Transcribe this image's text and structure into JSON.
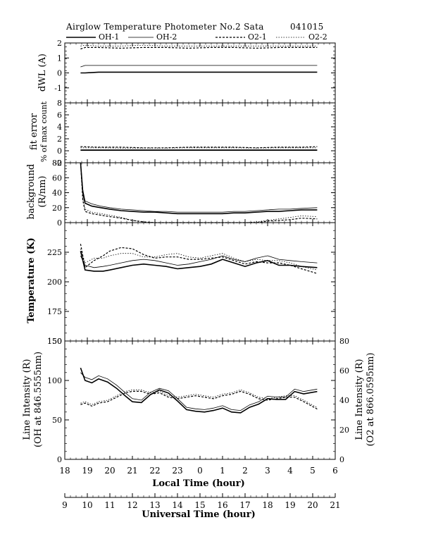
{
  "header": {
    "title": "Airglow Temperature Photometer No.2  Sata",
    "date": "041015"
  },
  "legend": [
    {
      "name": "OH-1",
      "style": "solid-thick"
    },
    {
      "name": "OH-2",
      "style": "solid-thin"
    },
    {
      "name": "O2-1",
      "style": "dashed"
    },
    {
      "name": "O2-2",
      "style": "dotted"
    }
  ],
  "x_axes": {
    "local_label": "Local Time (hour)",
    "local_ticks": [
      "18",
      "19",
      "20",
      "21",
      "22",
      "23",
      "0",
      "1",
      "2",
      "3",
      "4",
      "5",
      "6"
    ],
    "ut_label": "Universal Time (hour)",
    "ut_ticks": [
      "9",
      "10",
      "11",
      "12",
      "13",
      "14",
      "15",
      "16",
      "17",
      "18",
      "19",
      "20",
      "21"
    ]
  },
  "chart_data": [
    {
      "type": "line",
      "ylabel": "dWL (A)",
      "ylim": [
        -2,
        2
      ],
      "yticks": [
        "2",
        "1",
        "0",
        "-1"
      ],
      "x": [
        18.7,
        18.9,
        19.5,
        20.5,
        21.5,
        22.5,
        23.5,
        24.5,
        25.5,
        26.5,
        27.5,
        28.5,
        29.2
      ],
      "series": [
        {
          "name": "OH-1",
          "values": [
            0.0,
            0.0,
            0.05,
            0.05,
            0.05,
            0.05,
            0.05,
            0.05,
            0.05,
            0.05,
            0.05,
            0.05,
            0.05
          ]
        },
        {
          "name": "OH-2",
          "values": [
            0.4,
            0.5,
            0.5,
            0.5,
            0.5,
            0.5,
            0.5,
            0.5,
            0.5,
            0.5,
            0.5,
            0.5,
            0.5
          ]
        },
        {
          "name": "O2-1",
          "values": [
            1.6,
            1.7,
            1.7,
            1.65,
            1.7,
            1.7,
            1.65,
            1.7,
            1.7,
            1.65,
            1.7,
            1.7,
            1.7
          ]
        },
        {
          "name": "O2-2",
          "values": [
            1.8,
            1.85,
            1.8,
            1.8,
            1.85,
            1.8,
            1.8,
            1.8,
            1.8,
            1.8,
            1.8,
            1.8,
            1.8
          ]
        }
      ]
    },
    {
      "type": "line",
      "ylabel": "fit error",
      "ylabel2": "% of max count",
      "ylim": [
        -2,
        8
      ],
      "yticks": [
        "8",
        "6",
        "4",
        "2",
        "0",
        "-2"
      ],
      "x": [
        18.7,
        19.5,
        20.5,
        21.5,
        22.5,
        23.5,
        24.5,
        25.5,
        26.5,
        27.5,
        28.5,
        29.2
      ],
      "series": [
        {
          "name": "OH-1",
          "values": [
            0.1,
            0.1,
            0.1,
            0.1,
            0.1,
            0.1,
            0.1,
            0.1,
            0.1,
            0.1,
            0.1,
            0.1
          ]
        },
        {
          "name": "OH-2",
          "values": [
            0.15,
            0.15,
            0.15,
            0.15,
            0.15,
            0.15,
            0.15,
            0.15,
            0.15,
            0.15,
            0.15,
            0.15
          ]
        },
        {
          "name": "O2-1",
          "values": [
            0.7,
            0.6,
            0.6,
            0.5,
            0.5,
            0.6,
            0.6,
            0.6,
            0.5,
            0.6,
            0.6,
            0.7
          ]
        },
        {
          "name": "O2-2",
          "values": [
            0.5,
            0.5,
            0.45,
            0.45,
            0.45,
            0.5,
            0.5,
            0.5,
            0.45,
            0.5,
            0.5,
            0.5
          ]
        }
      ]
    },
    {
      "type": "line",
      "ylabel": "background",
      "ylabel2": "(R/nm)",
      "ylim": [
        0,
        80
      ],
      "yticks": [
        "80",
        "60",
        "40",
        "20",
        "0"
      ],
      "x": [
        18.7,
        18.8,
        18.9,
        19.2,
        19.6,
        20.0,
        20.5,
        21.0,
        21.5,
        22.0,
        22.5,
        23.0,
        23.5,
        24.0,
        24.5,
        25.0,
        25.5,
        26.0,
        26.5,
        27.0,
        27.5,
        28.0,
        28.5,
        29.2
      ],
      "series": [
        {
          "name": "OH-1",
          "values": [
            80,
            40,
            26,
            22,
            20,
            18,
            16,
            15,
            14,
            14,
            13,
            12,
            12,
            12,
            12,
            12,
            13,
            13,
            14,
            15,
            15,
            16,
            17,
            17
          ]
        },
        {
          "name": "OH-2",
          "values": [
            80,
            44,
            29,
            25,
            22,
            20,
            18,
            17,
            16,
            15,
            15,
            14,
            14,
            14,
            14,
            14,
            15,
            15,
            16,
            17,
            18,
            18,
            19,
            20
          ]
        },
        {
          "name": "O2-1",
          "values": [
            80,
            30,
            15,
            12,
            10,
            8,
            6,
            3,
            1,
            0,
            0,
            0,
            0,
            0,
            0,
            0,
            0,
            0,
            0,
            2,
            3,
            4,
            6,
            5
          ]
        },
        {
          "name": "O2-2",
          "values": [
            80,
            32,
            18,
            14,
            12,
            10,
            7,
            3,
            1,
            0,
            0,
            0,
            0,
            0,
            0,
            0,
            0,
            0,
            1,
            3,
            5,
            7,
            9,
            8
          ]
        }
      ]
    },
    {
      "type": "line",
      "ylabel": "Temperature (K)",
      "ylim": [
        150,
        250
      ],
      "yticks": [
        "225",
        "200",
        "175",
        "150"
      ],
      "x": [
        18.7,
        18.9,
        19.3,
        19.7,
        20.0,
        20.5,
        21.0,
        21.5,
        22.0,
        22.5,
        23.0,
        23.5,
        24.0,
        24.5,
        25.0,
        25.5,
        26.0,
        26.5,
        27.0,
        27.5,
        28.0,
        28.5,
        29.2
      ],
      "series": [
        {
          "name": "OH-1",
          "values": [
            226,
            210,
            209,
            209,
            210,
            212,
            214,
            215,
            214,
            213,
            211,
            212,
            213,
            215,
            219,
            216,
            213,
            216,
            218,
            214,
            214,
            213,
            212
          ]
        },
        {
          "name": "OH-2",
          "values": [
            222,
            214,
            212,
            213,
            214,
            216,
            218,
            219,
            218,
            216,
            214,
            215,
            217,
            219,
            222,
            219,
            217,
            220,
            222,
            219,
            218,
            217,
            216
          ]
        },
        {
          "name": "O2-1",
          "values": [
            232,
            212,
            218,
            222,
            226,
            229,
            228,
            223,
            220,
            221,
            221,
            219,
            219,
            220,
            221,
            218,
            215,
            217,
            216,
            216,
            214,
            211,
            207
          ]
        },
        {
          "name": "O2-2",
          "values": [
            228,
            216,
            220,
            220,
            222,
            224,
            224,
            221,
            221,
            223,
            224,
            221,
            220,
            222,
            224,
            220,
            217,
            219,
            218,
            218,
            216,
            213,
            210
          ]
        }
      ]
    },
    {
      "type": "line",
      "ylabel": "Line Intensity (R)",
      "ylabel2": "(OH at 846.5555nm)",
      "y2label": "Line Intensity (R)",
      "y2label2": "(O2 at 866.0595nm)",
      "ylim": [
        0,
        150
      ],
      "y2lim": [
        0,
        80
      ],
      "yticks": [
        "150",
        "100",
        "50",
        "0"
      ],
      "y2ticks": [
        "80",
        "60",
        "40",
        "20",
        "0"
      ],
      "x": [
        18.7,
        18.9,
        19.2,
        19.5,
        19.9,
        20.3,
        20.7,
        21.0,
        21.4,
        21.8,
        22.2,
        22.6,
        23.0,
        23.4,
        23.8,
        24.2,
        24.6,
        25.0,
        25.4,
        25.8,
        26.2,
        26.6,
        27.0,
        27.4,
        27.8,
        28.2,
        28.6,
        29.2
      ],
      "series": [
        {
          "name": "OH-1",
          "axis": "left",
          "values": [
            116,
            100,
            97,
            102,
            98,
            90,
            80,
            73,
            72,
            82,
            88,
            84,
            74,
            63,
            61,
            60,
            62,
            65,
            60,
            59,
            66,
            70,
            77,
            76,
            76,
            86,
            83,
            86
          ]
        },
        {
          "name": "OH-2",
          "axis": "left",
          "values": [
            110,
            104,
            101,
            106,
            102,
            94,
            84,
            77,
            75,
            85,
            90,
            87,
            77,
            66,
            64,
            63,
            65,
            68,
            63,
            62,
            69,
            73,
            80,
            79,
            79,
            89,
            86,
            89
          ]
        },
        {
          "name": "O2-1",
          "axis": "right",
          "values": [
            37,
            38,
            36,
            38,
            39,
            42,
            45,
            46,
            46,
            44,
            45,
            42,
            41,
            42,
            43,
            42,
            41,
            43,
            44,
            46,
            44,
            41,
            40,
            41,
            42,
            42,
            39,
            34
          ]
        },
        {
          "name": "O2-2",
          "axis": "right",
          "values": [
            38,
            39,
            37,
            39,
            40,
            43,
            46,
            47,
            47,
            45,
            46,
            43,
            42,
            43,
            44,
            43,
            42,
            44,
            45,
            47,
            45,
            42,
            41,
            42,
            43,
            43,
            40,
            35
          ]
        }
      ]
    }
  ]
}
